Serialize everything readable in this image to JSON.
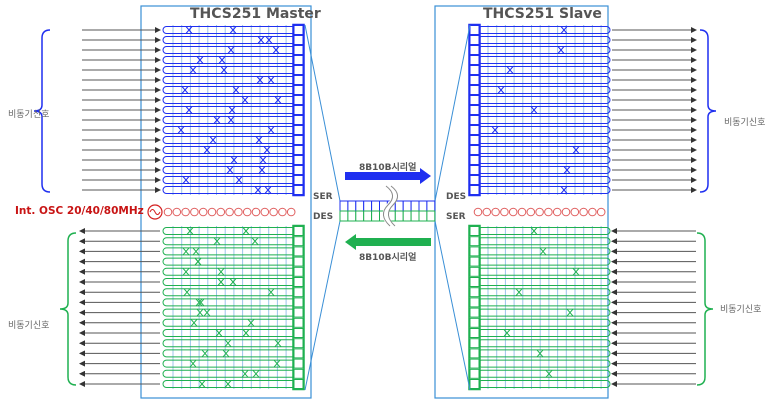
{
  "master": {
    "title": "THCS251 Master",
    "ser": "SER",
    "des": "DES"
  },
  "slave": {
    "title": "THCS251 Slave",
    "des": "DES",
    "ser": "SER"
  },
  "oscillator": {
    "label": "Int. OSC 20/40/80MHz"
  },
  "links": {
    "forward_label": "8B10B시리얼",
    "reverse_label": "8B10B시리얼"
  },
  "async_labels": {
    "master_in": "비동기신호",
    "master_out": "비동기신호",
    "slave_out": "비동기신호",
    "slave_in": "비동기신호"
  },
  "colors": {
    "tx": "#1f2ff0",
    "rx": "#1fb050",
    "osc": "#d42020",
    "box": "#3a8fd6",
    "grid": "#9cc4ea"
  }
}
